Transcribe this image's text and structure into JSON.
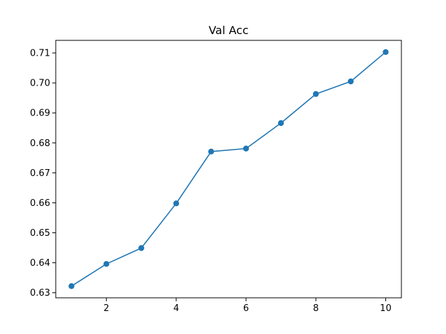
{
  "chart_data": {
    "type": "line",
    "title": "Val Acc",
    "xlabel": "",
    "ylabel": "",
    "x": [
      1,
      2,
      3,
      4,
      5,
      6,
      7,
      8,
      9,
      10
    ],
    "series": [
      {
        "values": [
          0.6322,
          0.6396,
          0.6449,
          0.6598,
          0.6771,
          0.6781,
          0.6866,
          0.6963,
          0.7005,
          0.7103
        ],
        "color": "#1f77b4",
        "marker": "circle"
      }
    ],
    "xlim": [
      0.55,
      10.45
    ],
    "ylim": [
      0.6283,
      0.7142
    ],
    "xticks": [
      2,
      4,
      6,
      8,
      10
    ],
    "xtick_labels": [
      "2",
      "4",
      "6",
      "8",
      "10"
    ],
    "yticks": [
      0.63,
      0.64,
      0.65,
      0.66,
      0.67,
      0.68,
      0.69,
      0.7,
      0.71
    ],
    "ytick_labels": [
      "0.63",
      "0.64",
      "0.65",
      "0.66",
      "0.67",
      "0.68",
      "0.69",
      "0.70",
      "0.71"
    ],
    "grid": false,
    "legend": "none"
  }
}
